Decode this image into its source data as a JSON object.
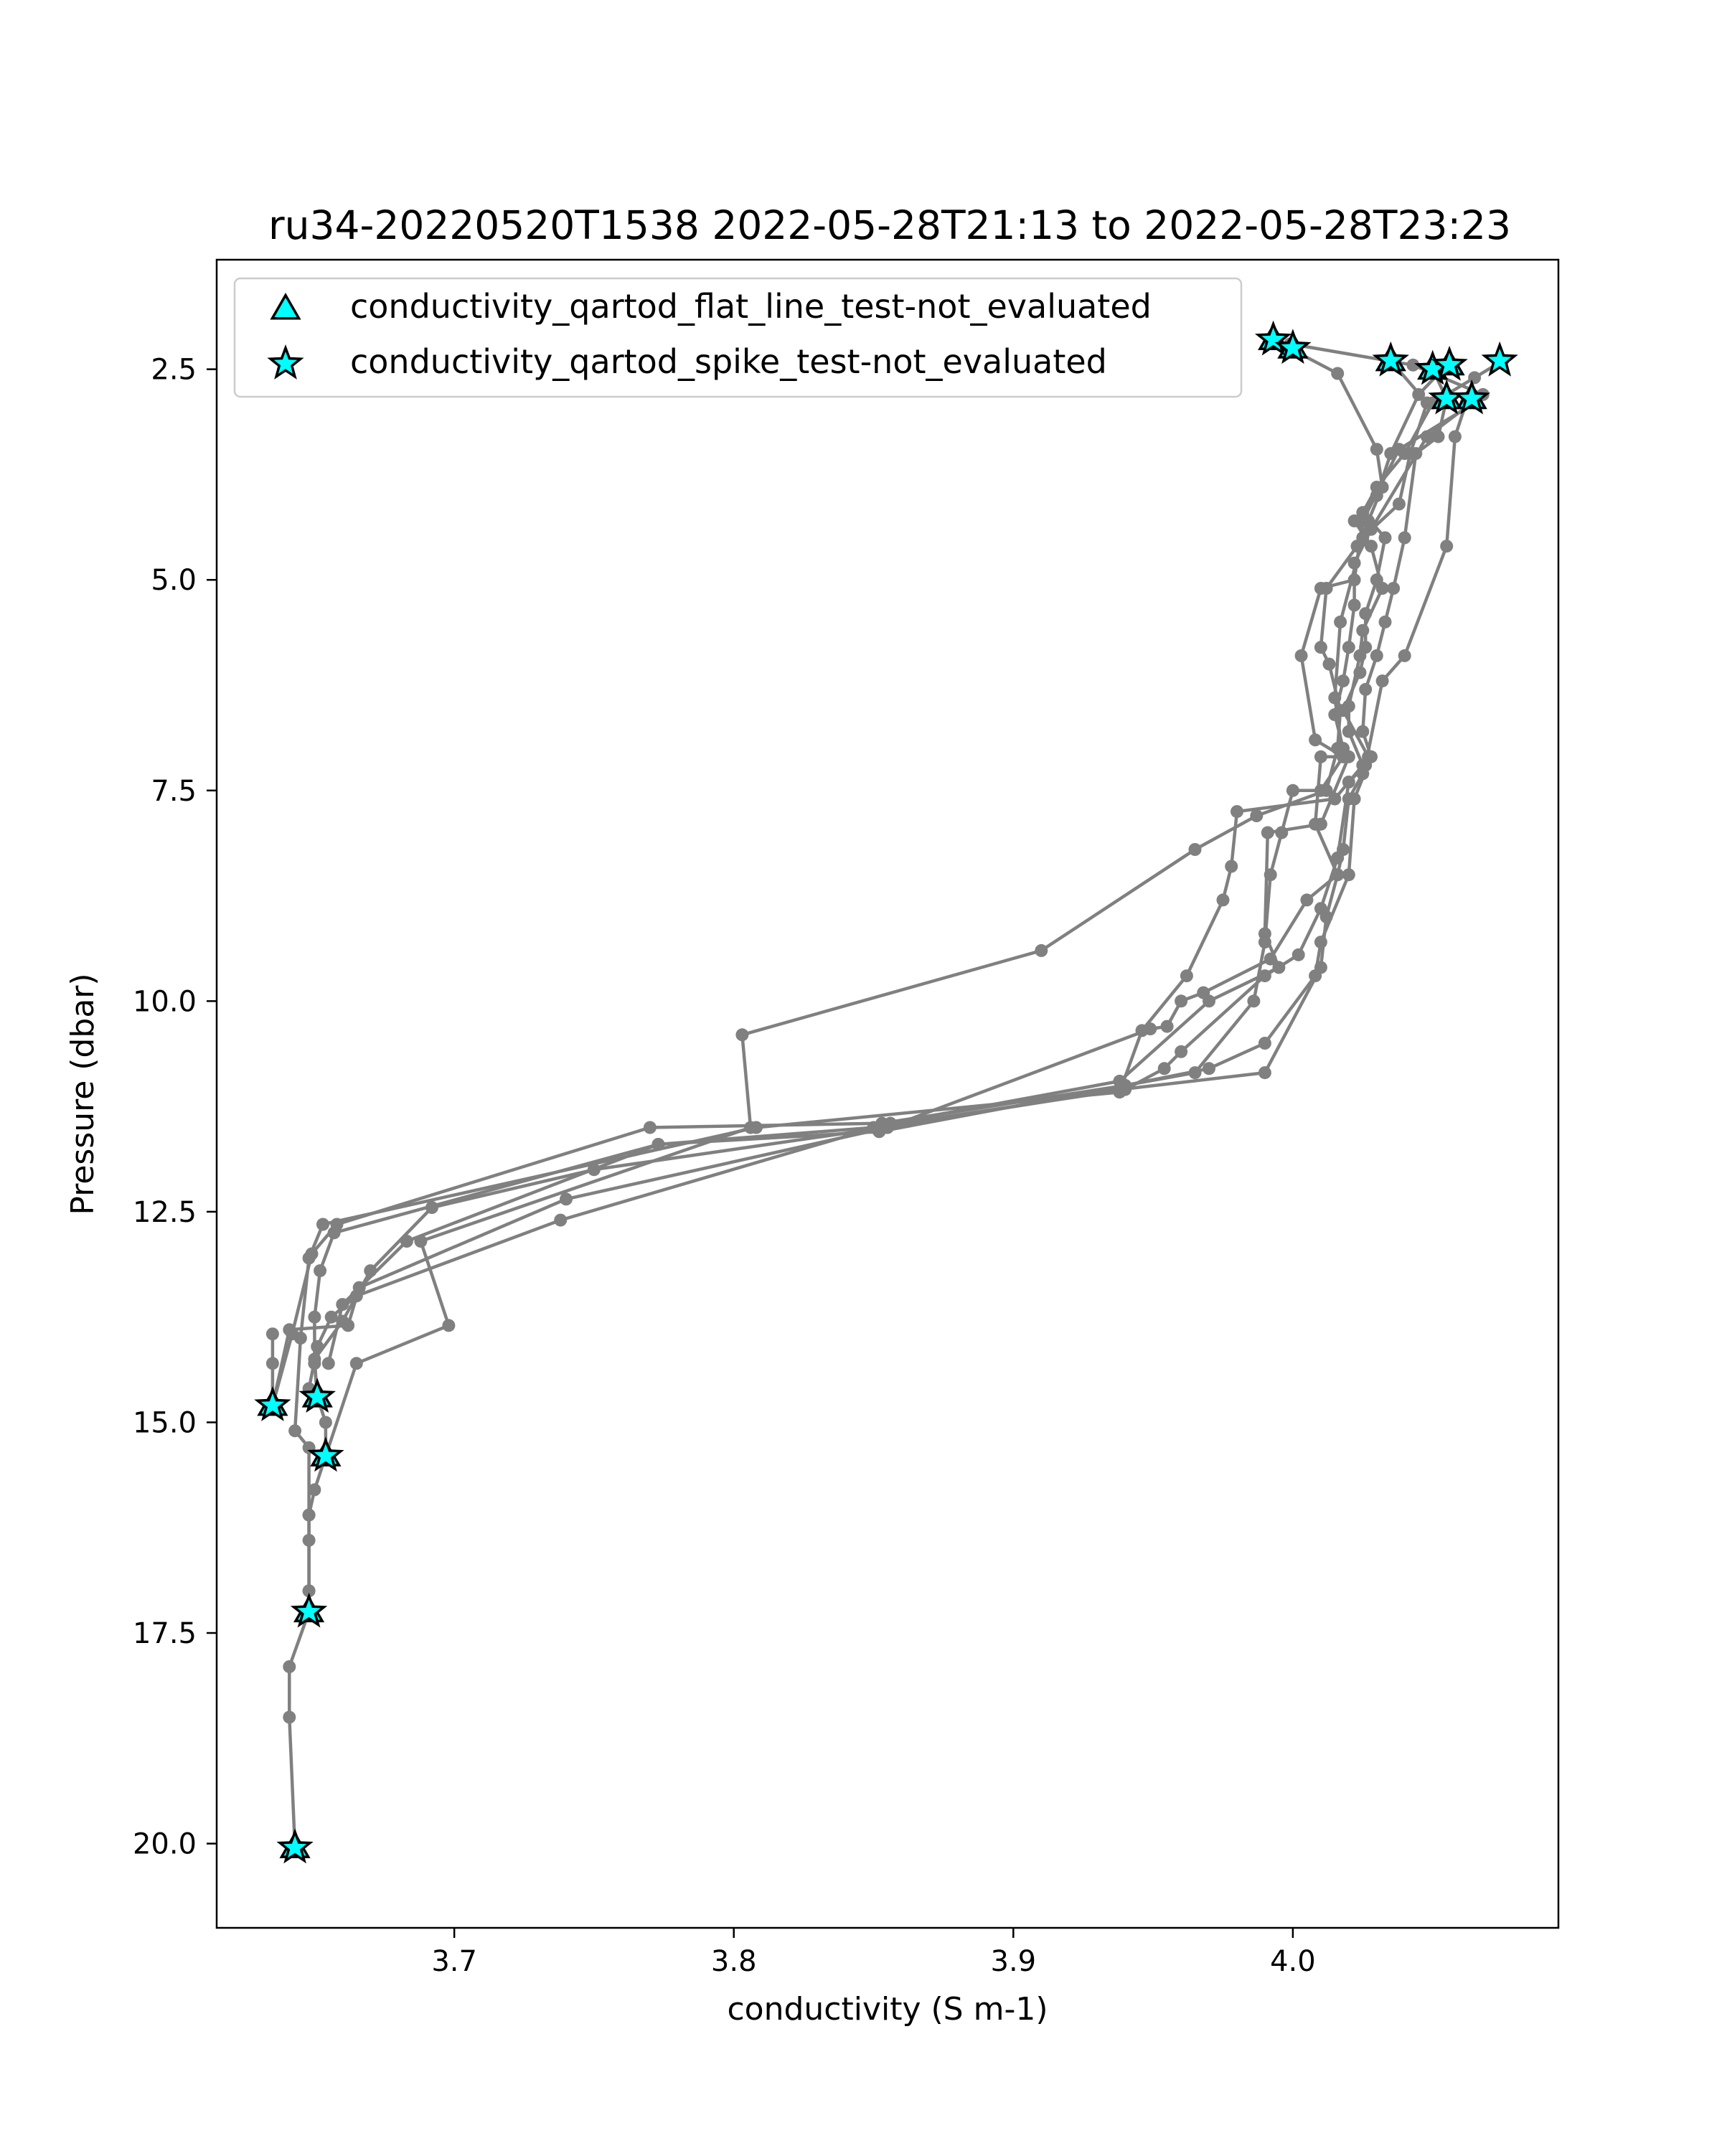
{
  "chart_data": {
    "type": "line",
    "title": "ru34-20220520T1538 2022-05-28T21:13 to 2022-05-28T23:23",
    "xlabel": "conductivity (S m-1)",
    "ylabel": "Pressure (dbar)",
    "xlim": [
      3.615,
      4.095
    ],
    "ylim": [
      21.0,
      1.2
    ],
    "y_inverted": true,
    "grid": false,
    "legend_position": "upper-left",
    "xticks": [
      {
        "value": 3.7,
        "label": "3.7"
      },
      {
        "value": 3.8,
        "label": "3.8"
      },
      {
        "value": 3.9,
        "label": "3.9"
      },
      {
        "value": 4.0,
        "label": "4.0"
      }
    ],
    "yticks": [
      {
        "value": 2.5,
        "label": "2.5"
      },
      {
        "value": 5.0,
        "label": "5.0"
      },
      {
        "value": 7.5,
        "label": "7.5"
      },
      {
        "value": 10.0,
        "label": "10.0"
      },
      {
        "value": 12.5,
        "label": "12.5"
      },
      {
        "value": 15.0,
        "label": "15.0"
      },
      {
        "value": 17.5,
        "label": "17.5"
      },
      {
        "value": 20.0,
        "label": "20.0"
      }
    ],
    "colors": {
      "profile_line": "#808080",
      "flag_marker_fill": "#00FFFF",
      "flag_marker_edge": "#000000"
    },
    "legend": [
      {
        "label": "conductivity_qartod_flat_line_test-not_evaluated",
        "marker": "triangle"
      },
      {
        "label": "conductivity_qartod_spike_test-not_evaluated",
        "marker": "star"
      }
    ],
    "series": [
      {
        "points": [
          [
            3.993,
            2.15
          ],
          [
            4.016,
            2.55
          ],
          [
            4.03,
            3.45
          ],
          [
            4.032,
            3.9
          ],
          [
            4.027,
            4.3
          ],
          [
            4.023,
            4.6
          ],
          [
            4.012,
            5.1
          ],
          [
            4.01,
            5.8
          ],
          [
            4.013,
            6.0
          ],
          [
            4.017,
            6.55
          ],
          [
            4.016,
            7.0
          ],
          [
            4.012,
            7.5
          ],
          [
            3.987,
            7.8
          ],
          [
            3.965,
            8.2
          ],
          [
            3.91,
            9.4
          ],
          [
            3.803,
            10.4
          ],
          [
            3.806,
            11.5
          ],
          [
            3.688,
            12.85
          ],
          [
            3.698,
            13.85
          ],
          [
            3.665,
            14.3
          ],
          [
            3.654,
            15.4
          ],
          [
            3.65,
            15.8
          ],
          [
            3.648,
            16.1
          ],
          [
            3.648,
            16.4
          ],
          [
            3.648,
            17.0
          ],
          [
            3.648,
            17.25
          ],
          [
            3.641,
            17.9
          ],
          [
            3.641,
            18.5
          ],
          [
            3.643,
            20.05
          ]
        ]
      },
      {
        "points": [
          [
            3.999,
            2.2
          ],
          [
            4.043,
            2.45
          ],
          [
            4.068,
            2.8
          ],
          [
            4.048,
            3.3
          ],
          [
            4.028,
            4.4
          ],
          [
            4.022,
            4.8
          ],
          [
            4.022,
            5.3
          ],
          [
            4.02,
            5.8
          ],
          [
            4.018,
            6.2
          ],
          [
            4.015,
            6.6
          ],
          [
            4.018,
            7.0
          ],
          [
            4.02,
            7.1
          ],
          [
            4.01,
            7.9
          ],
          [
            3.991,
            8.0
          ],
          [
            3.99,
            9.2
          ],
          [
            3.995,
            9.6
          ],
          [
            3.97,
            10.0
          ],
          [
            3.938,
            10.95
          ],
          [
            3.856,
            11.45
          ],
          [
            3.738,
            12.6
          ],
          [
            3.665,
            13.5
          ],
          [
            3.656,
            13.75
          ],
          [
            3.651,
            14.1
          ],
          [
            3.648,
            14.6
          ],
          [
            3.651,
            14.7
          ]
        ]
      },
      {
        "points": [
          [
            4.075,
            2.4
          ],
          [
            4.065,
            2.6
          ],
          [
            4.05,
            2.9
          ],
          [
            4.04,
            3.5
          ],
          [
            4.03,
            3.9
          ],
          [
            4.025,
            4.2
          ],
          [
            4.033,
            4.5
          ],
          [
            4.03,
            5.0
          ],
          [
            4.026,
            5.4
          ],
          [
            4.026,
            5.8
          ],
          [
            4.024,
            6.1
          ],
          [
            4.018,
            6.55
          ],
          [
            4.027,
            7.1
          ],
          [
            4.025,
            7.3
          ],
          [
            4.02,
            7.6
          ],
          [
            4.018,
            8.2
          ],
          [
            4.016,
            8.5
          ],
          [
            4.012,
            9.0
          ],
          [
            4.01,
            9.6
          ],
          [
            3.99,
            10.85
          ],
          [
            3.938,
            11.05
          ],
          [
            3.854,
            11.5
          ],
          [
            3.75,
            12.0
          ],
          [
            3.692,
            12.45
          ],
          [
            3.67,
            13.2
          ],
          [
            3.66,
            13.8
          ],
          [
            3.65,
            14.25
          ],
          [
            3.651,
            14.7
          ]
        ]
      },
      {
        "points": [
          [
            4.065,
            2.9
          ],
          [
            4.038,
            3.45
          ],
          [
            4.025,
            4.3
          ],
          [
            4.022,
            5.0
          ],
          [
            4.01,
            5.1
          ],
          [
            4.003,
            5.9
          ],
          [
            4.008,
            6.9
          ],
          [
            4.018,
            7.1
          ],
          [
            4.01,
            7.5
          ],
          [
            4.0,
            7.5
          ],
          [
            3.996,
            8.0
          ],
          [
            3.992,
            8.5
          ],
          [
            3.99,
            9.3
          ],
          [
            3.986,
            10.0
          ],
          [
            3.965,
            10.85
          ],
          [
            3.94,
            11.0
          ],
          [
            3.852,
            11.55
          ],
          [
            3.773,
            11.7
          ],
          [
            3.683,
            12.85
          ],
          [
            3.66,
            13.6
          ],
          [
            3.655,
            14.3
          ]
        ]
      },
      {
        "points": [
          [
            4.035,
            2.4
          ],
          [
            4.048,
            2.9
          ],
          [
            4.042,
            3.5
          ],
          [
            4.038,
            4.1
          ],
          [
            4.025,
            4.5
          ],
          [
            4.017,
            5.5
          ],
          [
            4.015,
            6.4
          ],
          [
            4.018,
            7.1
          ],
          [
            4.01,
            7.1
          ],
          [
            4.008,
            7.9
          ],
          [
            4.016,
            8.5
          ],
          [
            4.005,
            8.8
          ],
          [
            3.992,
            9.5
          ],
          [
            3.968,
            9.9
          ],
          [
            3.96,
            10.0
          ],
          [
            3.955,
            10.3
          ],
          [
            3.949,
            10.33
          ],
          [
            3.855,
            11.5
          ],
          [
            3.74,
            12.35
          ],
          [
            3.666,
            13.4
          ],
          [
            3.662,
            13.85
          ],
          [
            3.641,
            13.9
          ],
          [
            3.635,
            14.8
          ],
          [
            3.635,
            14.3
          ],
          [
            3.635,
            13.95
          ]
        ]
      },
      {
        "points": [
          [
            4.055,
            2.45
          ],
          [
            4.045,
            2.8
          ],
          [
            4.035,
            3.5
          ],
          [
            4.03,
            4.0
          ],
          [
            4.022,
            4.3
          ],
          [
            4.028,
            4.6
          ],
          [
            4.032,
            5.1
          ],
          [
            4.025,
            5.6
          ],
          [
            4.024,
            5.9
          ],
          [
            4.02,
            6.5
          ],
          [
            4.02,
            6.8
          ],
          [
            4.025,
            7.2
          ],
          [
            4.015,
            7.6
          ],
          [
            3.98,
            7.75
          ],
          [
            3.978,
            8.4
          ],
          [
            3.975,
            8.8
          ],
          [
            3.962,
            9.7
          ],
          [
            3.946,
            10.35
          ],
          [
            3.938,
            11.08
          ],
          [
            3.808,
            11.5
          ],
          [
            3.653,
            12.65
          ],
          [
            3.648,
            13.05
          ],
          [
            3.645,
            14.0
          ],
          [
            3.643,
            15.1
          ],
          [
            3.648,
            15.3
          ],
          [
            3.648,
            16.1
          ],
          [
            3.648,
            17.0
          ]
        ]
      },
      {
        "points": [
          [
            4.05,
            2.5
          ],
          [
            4.055,
            2.85
          ],
          [
            4.052,
            3.3
          ],
          [
            4.044,
            3.5
          ],
          [
            4.04,
            4.5
          ],
          [
            4.036,
            5.1
          ],
          [
            4.033,
            5.5
          ],
          [
            4.03,
            5.9
          ],
          [
            4.026,
            6.3
          ],
          [
            4.025,
            6.8
          ],
          [
            4.028,
            7.1
          ],
          [
            4.022,
            7.6
          ],
          [
            4.02,
            8.5
          ],
          [
            4.01,
            9.3
          ],
          [
            4.008,
            9.7
          ],
          [
            3.99,
            10.5
          ],
          [
            3.97,
            10.8
          ],
          [
            3.94,
            11.0
          ],
          [
            3.853,
            11.45
          ],
          [
            3.77,
            11.5
          ],
          [
            3.658,
            12.65
          ],
          [
            3.649,
            13.0
          ],
          [
            3.642,
            13.95
          ],
          [
            3.635,
            14.8
          ]
        ]
      },
      {
        "points": [
          [
            4.062,
            2.9
          ],
          [
            4.058,
            3.3
          ],
          [
            4.055,
            4.6
          ],
          [
            4.04,
            5.9
          ],
          [
            4.032,
            6.2
          ],
          [
            4.026,
            7.2
          ],
          [
            4.02,
            7.4
          ],
          [
            4.016,
            8.3
          ],
          [
            4.01,
            8.9
          ],
          [
            4.002,
            9.45
          ],
          [
            3.99,
            9.7
          ],
          [
            3.96,
            10.6
          ],
          [
            3.954,
            10.8
          ],
          [
            3.94,
            11.05
          ],
          [
            3.85,
            11.5
          ],
          [
            3.773,
            11.7
          ],
          [
            3.657,
            12.75
          ],
          [
            3.652,
            13.2
          ],
          [
            3.65,
            13.75
          ],
          [
            3.65,
            14.3
          ],
          [
            3.651,
            14.7
          ],
          [
            3.654,
            15.0
          ],
          [
            3.654,
            15.4
          ]
        ]
      }
    ],
    "flags": {
      "flat_line_not_evaluated": [
        [
          3.993,
          2.15
        ],
        [
          4.0,
          2.25
        ],
        [
          4.035,
          2.4
        ],
        [
          4.05,
          2.5
        ],
        [
          4.056,
          2.45
        ],
        [
          4.055,
          2.85
        ],
        [
          4.064,
          2.85
        ],
        [
          3.635,
          14.8
        ],
        [
          3.651,
          14.7
        ],
        [
          3.654,
          15.4
        ],
        [
          3.648,
          17.25
        ],
        [
          3.643,
          20.05
        ]
      ],
      "spike_not_evaluated": [
        [
          3.993,
          2.15
        ],
        [
          4.0,
          2.25
        ],
        [
          4.035,
          2.4
        ],
        [
          4.05,
          2.5
        ],
        [
          4.056,
          2.45
        ],
        [
          4.074,
          2.4
        ],
        [
          4.055,
          2.85
        ],
        [
          4.064,
          2.85
        ],
        [
          3.635,
          14.8
        ],
        [
          3.651,
          14.7
        ],
        [
          3.654,
          15.4
        ],
        [
          3.648,
          17.25
        ],
        [
          3.643,
          20.05
        ]
      ]
    }
  }
}
